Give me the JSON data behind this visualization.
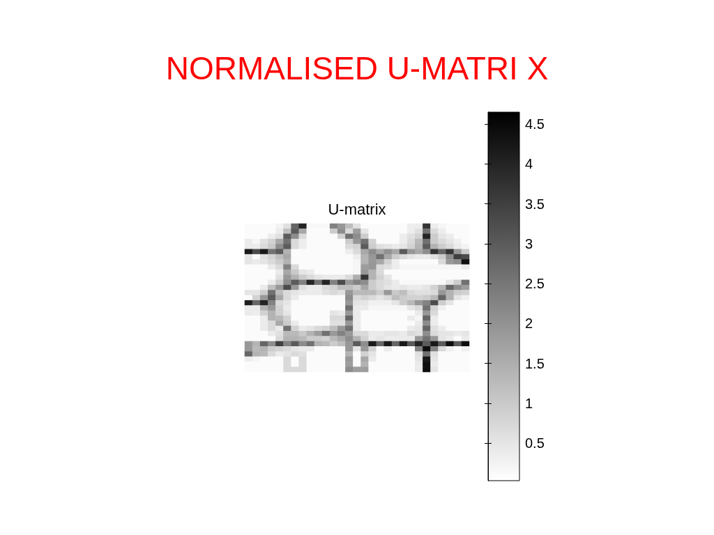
{
  "chart_data": {
    "type": "heatmap",
    "title": "NORMALISED U-MATRI X",
    "subtitle": "U-matrix",
    "categories": [
      null,
      null,
      null,
      null,
      null,
      null,
      null,
      null,
      null,
      null,
      null,
      null,
      null,
      null,
      null,
      null,
      null,
      null,
      null,
      null,
      null,
      null,
      null,
      null,
      null,
      null,
      null,
      null,
      null
    ],
    "y_categories": [
      null,
      null,
      null,
      null,
      null,
      null,
      null,
      null,
      null,
      null,
      null,
      null,
      null,
      null,
      null,
      null,
      null,
      null,
      null,
      null,
      null,
      null,
      null,
      null,
      null,
      null,
      null,
      null,
      null
    ],
    "cells": [
      [
        0.1,
        0.1,
        0.1,
        0.1,
        0.25,
        0.6,
        2.8,
        4.0,
        0.15,
        0.15,
        0.15,
        2.3,
        1.9,
        1.2,
        0.6,
        0.1,
        0.1,
        0.1,
        0.1,
        0.1,
        0.1,
        0.35,
        0.35,
        3.7,
        0.35,
        0.2,
        0.1,
        0.1,
        0.1
      ],
      [
        0.1,
        0.1,
        0.1,
        0.1,
        0.35,
        1.2,
        3.0,
        1.6,
        0.1,
        0.1,
        0.1,
        0.95,
        2.1,
        0.7,
        1.8,
        0.5,
        0.1,
        0.1,
        0.1,
        0.1,
        0.1,
        0.35,
        0.6,
        2.6,
        0.7,
        0.35,
        0.1,
        0.1,
        0.1
      ],
      [
        0.1,
        0.1,
        0.1,
        0.35,
        0.6,
        3.0,
        2.1,
        0.7,
        0.1,
        0.1,
        0.1,
        0.1,
        0.85,
        2.6,
        2.1,
        0.95,
        0.1,
        0.1,
        0.1,
        0.1,
        0.35,
        0.6,
        0.85,
        4.0,
        0.95,
        0.5,
        0.35,
        0.1,
        0.1
      ],
      [
        0.4,
        0.2,
        0.6,
        0.85,
        1.6,
        2.6,
        0.7,
        0.35,
        0.1,
        0.1,
        0.1,
        0.1,
        0.1,
        0.95,
        1.9,
        2.6,
        0.85,
        0.1,
        0.1,
        0.1,
        0.35,
        0.7,
        1.3,
        2.6,
        0.95,
        0.7,
        0.5,
        0.3,
        0.1
      ],
      [
        0.4,
        0.4,
        0.7,
        1.0,
        2.1,
        3.0,
        0.7,
        0.35,
        0.1,
        0.1,
        0.1,
        0.1,
        0.1,
        0.7,
        0.85,
        3.0,
        0.95,
        0.6,
        0.5,
        0.4,
        0.5,
        0.85,
        1.4,
        3.0,
        1.4,
        0.95,
        0.7,
        0.4,
        0.25
      ],
      [
        4.2,
        3.3,
        4.2,
        2.6,
        3.0,
        1.4,
        0.1,
        0.1,
        0.1,
        0.1,
        0.1,
        0.1,
        0.1,
        0.35,
        0.7,
        1.6,
        2.1,
        1.6,
        2.0,
        1.6,
        3.0,
        1.9,
        1.6,
        2.1,
        3.7,
        2.8,
        3.7,
        1.9,
        0.95
      ],
      [
        0.5,
        0.1,
        0.6,
        0.85,
        1.2,
        1.6,
        0.1,
        0.1,
        0.1,
        0.1,
        0.1,
        0.1,
        0.1,
        0.1,
        0.35,
        1.4,
        1.9,
        2.6,
        1.6,
        0.95,
        0.7,
        0.5,
        0.4,
        0.4,
        0.6,
        0.95,
        2.1,
        3.5,
        3.3
      ],
      [
        0.5,
        0.4,
        0.5,
        0.7,
        0.95,
        1.4,
        0.1,
        0.1,
        0.1,
        0.1,
        0.1,
        0.1,
        0.1,
        0.1,
        0.2,
        1.4,
        1.9,
        1.6,
        0.85,
        0.35,
        0.1,
        0.1,
        0.1,
        0.1,
        0.1,
        0.7,
        1.9,
        2.1,
        4.4
      ],
      [
        0.1,
        0.1,
        0.1,
        0.4,
        0.7,
        2.3,
        0.7,
        0.1,
        0.1,
        0.1,
        0.1,
        0.1,
        0.1,
        0.1,
        0.2,
        1.8,
        1.9,
        0.7,
        0.6,
        0.35,
        0.2,
        0.2,
        0.2,
        0.2,
        0.2,
        0.2,
        0.2,
        0.2,
        0.4
      ],
      [
        0.1,
        0.1,
        0.1,
        0.1,
        0.4,
        1.6,
        1.0,
        0.5,
        0.4,
        0.1,
        0.1,
        0.1,
        0.1,
        0.1,
        0.2,
        1.9,
        1.4,
        0.7,
        0.1,
        0.1,
        0.1,
        0.1,
        0.1,
        0.1,
        0.1,
        0.1,
        0.1,
        0.1,
        0.1
      ],
      [
        0.1,
        0.1,
        0.1,
        0.1,
        0.6,
        1.9,
        1.4,
        0.95,
        0.7,
        0.5,
        0.4,
        0.4,
        0.4,
        0.7,
        1.5,
        3.7,
        1.4,
        0.85,
        0.5,
        0.1,
        0.1,
        0.1,
        0.1,
        0.1,
        0.1,
        0.1,
        0.1,
        0.1,
        0.1
      ],
      [
        0.1,
        0.1,
        0.1,
        0.4,
        0.95,
        2.1,
        3.0,
        2.3,
        4.0,
        2.6,
        4.0,
        2.3,
        3.3,
        1.9,
        2.3,
        2.1,
        0.95,
        0.7,
        0.6,
        0.4,
        0.15,
        0.15,
        0.15,
        0.15,
        0.15,
        0.15,
        0.5,
        0.95,
        2.6
      ],
      [
        0.1,
        0.1,
        0.4,
        1.2,
        1.9,
        3.3,
        1.9,
        0.6,
        0.4,
        0.4,
        0.7,
        0.85,
        1.2,
        1.2,
        0.95,
        1.6,
        0.95,
        0.7,
        0.5,
        0.4,
        0.5,
        0.4,
        0.4,
        0.5,
        0.85,
        1.4,
        2.8,
        2.1,
        1.8
      ],
      [
        0.5,
        0.5,
        0.95,
        2.6,
        1.2,
        0.7,
        0.5,
        0.4,
        0.4,
        0.4,
        0.6,
        0.7,
        0.6,
        1.9,
        1.3,
        1.3,
        1.3,
        0.95,
        1.9,
        1.0,
        1.2,
        0.7,
        0.6,
        0.6,
        0.7,
        1.9,
        1.4,
        0.95,
        0.85
      ],
      [
        0.1,
        0.85,
        1.9,
        3.0,
        1.6,
        0.7,
        0.4,
        0.1,
        0.1,
        0.1,
        0.1,
        0.1,
        0.1,
        2.1,
        0.7,
        0.85,
        0.7,
        0.5,
        0.7,
        1.2,
        0.95,
        0.85,
        0.85,
        0.95,
        1.3,
        2.8,
        1.4,
        0.5,
        0.3
      ],
      [
        4.1,
        2.8,
        4.0,
        2.3,
        0.7,
        0.5,
        0.1,
        0.1,
        0.1,
        0.1,
        0.1,
        0.1,
        0.1,
        1.9,
        0.5,
        0.5,
        0.3,
        0.3,
        0.3,
        0.5,
        0.95,
        1.3,
        1.9,
        2.3,
        3.3,
        0.95,
        0.5,
        0.1,
        0.1
      ],
      [
        0.4,
        0.4,
        1.4,
        1.9,
        0.85,
        0.4,
        0.1,
        0.1,
        0.1,
        0.1,
        0.1,
        0.1,
        0.1,
        2.6,
        0.4,
        0.4,
        0.2,
        0.2,
        0.2,
        0.2,
        0.2,
        0.5,
        0.7,
        2.6,
        0.85,
        0.3,
        0.1,
        0.1,
        0.1
      ],
      [
        0.4,
        0.35,
        0.85,
        1.4,
        0.85,
        0.5,
        0.1,
        0.1,
        0.1,
        0.1,
        0.1,
        0.5,
        0.4,
        1.9,
        0.4,
        0.1,
        0.1,
        0.1,
        0.1,
        0.1,
        0.1,
        0.1,
        0.4,
        1.9,
        0.7,
        0.1,
        0.1,
        0.1,
        0.1
      ],
      [
        0.1,
        0.1,
        0.4,
        1.4,
        1.3,
        0.85,
        0.1,
        0.1,
        0.1,
        0.1,
        0.1,
        0.7,
        0.7,
        2.8,
        0.4,
        0.1,
        0.1,
        0.1,
        0.1,
        0.1,
        0.1,
        0.4,
        0.2,
        2.8,
        0.4,
        0.1,
        0.1,
        0.1,
        0.1
      ],
      [
        0.1,
        0.1,
        0.4,
        0.7,
        1.6,
        0.95,
        0.4,
        0.1,
        0.1,
        0.1,
        0.1,
        0.6,
        0.6,
        1.9,
        0.4,
        0.1,
        0.1,
        0.1,
        0.1,
        0.1,
        0.1,
        0.1,
        0.4,
        2.1,
        0.4,
        0.1,
        0.1,
        0.1,
        0.1
      ],
      [
        0.1,
        0.1,
        0.4,
        0.7,
        0.4,
        2.6,
        0.85,
        0.4,
        0.5,
        0.7,
        0.85,
        1.2,
        1.9,
        2.6,
        0.4,
        0.1,
        0.1,
        0.1,
        0.1,
        0.1,
        0.1,
        0.4,
        0.5,
        2.8,
        0.6,
        0.35,
        0.1,
        0.1,
        0.1
      ],
      [
        0.1,
        0.1,
        0.1,
        0.4,
        0.6,
        1.3,
        1.3,
        1.0,
        1.4,
        1.8,
        2.6,
        1.9,
        2.3,
        1.9,
        0.7,
        0.7,
        0.4,
        0.4,
        0.5,
        0.5,
        0.4,
        0.7,
        0.6,
        2.1,
        0.7,
        0.5,
        0.5,
        0.4,
        0.5
      ],
      [
        0.1,
        0.1,
        0.1,
        0.1,
        0.7,
        1.4,
        1.4,
        1.3,
        0.95,
        0.95,
        0.85,
        1.3,
        1.6,
        2.1,
        1.4,
        0.85,
        0.4,
        0.5,
        0.4,
        0.4,
        0.4,
        0.4,
        1.9,
        2.6,
        1.9,
        0.5,
        0.4,
        0.1,
        0.4
      ],
      [
        1.9,
        1.4,
        2.8,
        2.1,
        3.5,
        2.3,
        3.0,
        2.1,
        2.6,
        1.4,
        1.3,
        0.95,
        1.2,
        1.9,
        3.0,
        2.1,
        4.2,
        2.8,
        4.2,
        2.8,
        4.2,
        3.0,
        4.0,
        3.0,
        4.2,
        3.0,
        4.4,
        3.0,
        4.4
      ],
      [
        1.9,
        1.3,
        1.4,
        0.95,
        0.85,
        0.7,
        0.5,
        0.4,
        0.4,
        0.1,
        0.1,
        0.1,
        0.1,
        1.9,
        0.5,
        1.9,
        0.85,
        0.1,
        0.4,
        0.1,
        0.1,
        0.1,
        2.3,
        4.4,
        2.3,
        0.7,
        0.3,
        0.1,
        0.3
      ],
      [
        2.8,
        1.4,
        1.3,
        0.7,
        0.4,
        0.5,
        0.7,
        0.6,
        0.1,
        0.1,
        0.1,
        0.1,
        0.1,
        1.4,
        0.1,
        0.85,
        0.5,
        0.1,
        0.1,
        0.1,
        0.1,
        0.1,
        0.6,
        2.6,
        0.6,
        0.1,
        0.1,
        0.1,
        0.1
      ],
      [
        0.35,
        0.2,
        0.1,
        0.1,
        0.1,
        0.7,
        0.1,
        0.7,
        0.1,
        0.1,
        0.1,
        0.1,
        0.1,
        1.9,
        0.1,
        1.6,
        0.4,
        0.1,
        0.1,
        0.1,
        0.1,
        0.1,
        0.5,
        4.2,
        0.5,
        0.1,
        0.1,
        0.1,
        0.1
      ],
      [
        0.1,
        0.1,
        0.1,
        0.1,
        0.1,
        0.7,
        0.1,
        0.7,
        0.1,
        0.1,
        0.1,
        0.1,
        0.1,
        1.8,
        0.1,
        1.4,
        0.1,
        0.1,
        0.1,
        0.1,
        0.1,
        0.1,
        0.4,
        4.4,
        0.4,
        0.1,
        0.1,
        0.1,
        0.1
      ],
      [
        0.1,
        0.1,
        0.1,
        0.1,
        0.1,
        0.7,
        0.7,
        0.7,
        0.1,
        0.1,
        0.1,
        0.1,
        0.1,
        2.1,
        1.8,
        1.8,
        0.1,
        0.1,
        0.1,
        0.1,
        0.1,
        0.1,
        0.4,
        4.4,
        0.5,
        0.1,
        0.1,
        0.1,
        0.1
      ]
    ],
    "clim": [
      0.03,
      4.65
    ],
    "cticks": [
      0.5,
      1,
      1.5,
      2,
      2.5,
      3,
      3.5,
      4,
      4.5
    ]
  }
}
